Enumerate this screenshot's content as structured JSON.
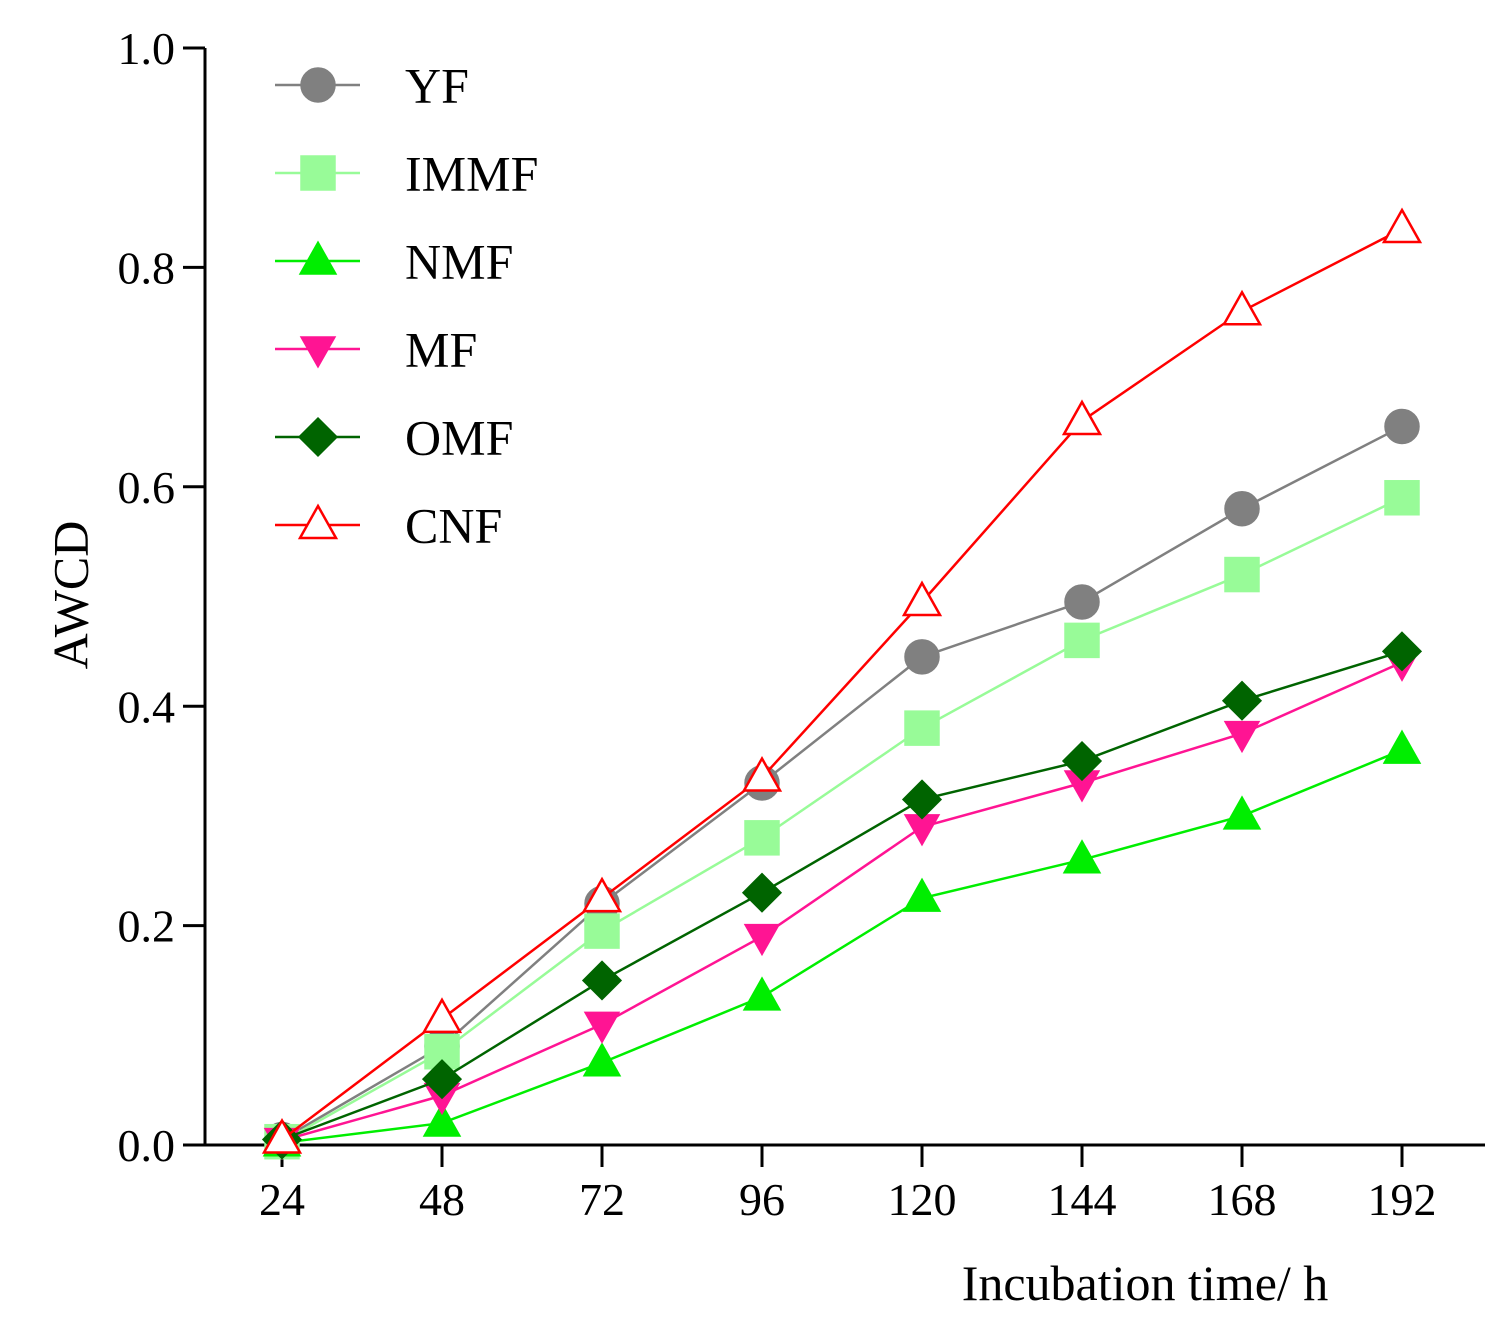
{
  "chart_data": {
    "type": "line",
    "title": "",
    "xlabel": "Incubation time/ h",
    "ylabel": "AWCD",
    "x": [
      24,
      48,
      72,
      96,
      120,
      144,
      168,
      192
    ],
    "x_tick_labels": [
      "24",
      "48",
      "72",
      "96",
      "120",
      "144",
      "168",
      "192"
    ],
    "ylim": [
      0.0,
      1.0
    ],
    "y_ticks": [
      0.0,
      0.2,
      0.4,
      0.6,
      0.8,
      1.0
    ],
    "y_tick_labels": [
      "0.0",
      "0.2",
      "0.4",
      "0.6",
      "0.8",
      "1.0"
    ],
    "grid": false,
    "legend_position": "top-left",
    "series": [
      {
        "name": "YF",
        "color": "#808080",
        "line_color": "#808080",
        "marker": "circle",
        "filled": true,
        "values": [
          0.005,
          0.09,
          0.22,
          0.33,
          0.445,
          0.495,
          0.58,
          0.655
        ]
      },
      {
        "name": "IMMF",
        "color": "#98fb98",
        "line_color": "#98fb98",
        "marker": "square",
        "filled": true,
        "values": [
          0.003,
          0.085,
          0.195,
          0.28,
          0.38,
          0.46,
          0.52,
          0.59
        ]
      },
      {
        "name": "NMF",
        "color": "#00ee00",
        "line_color": "#00ee00",
        "marker": "triangle-up",
        "filled": true,
        "values": [
          0.002,
          0.02,
          0.075,
          0.135,
          0.225,
          0.26,
          0.3,
          0.36
        ]
      },
      {
        "name": "MF",
        "color": "#ff1493",
        "line_color": "#ff1493",
        "marker": "triangle-down",
        "filled": true,
        "values": [
          0.004,
          0.045,
          0.11,
          0.19,
          0.29,
          0.33,
          0.375,
          0.44
        ]
      },
      {
        "name": "OMF",
        "color": "#006400",
        "line_color": "#006400",
        "marker": "diamond",
        "filled": true,
        "values": [
          0.005,
          0.06,
          0.15,
          0.23,
          0.315,
          0.35,
          0.405,
          0.45
        ]
      },
      {
        "name": "CNF",
        "color": "#ff0000",
        "line_color": "#ff0000",
        "marker": "triangle-up",
        "filled": false,
        "values": [
          0.005,
          0.115,
          0.225,
          0.335,
          0.495,
          0.66,
          0.76,
          0.835
        ]
      }
    ]
  }
}
